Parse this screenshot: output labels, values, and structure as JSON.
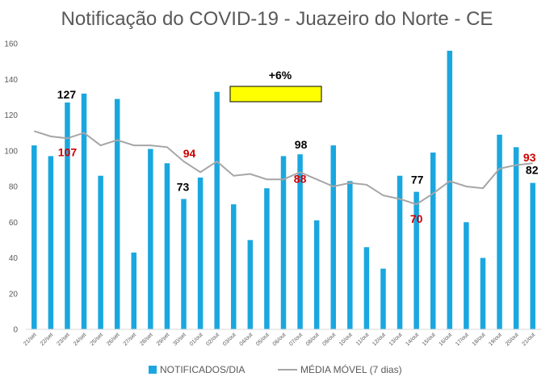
{
  "chart_data": {
    "type": "bar",
    "title": "Notificação do COVID-19 - Juazeiro do Norte - CE",
    "categories": [
      "21/set",
      "22/set",
      "23/set",
      "24/set",
      "25/set",
      "26/set",
      "27/set",
      "28/set",
      "29/set",
      "30/set",
      "01/out",
      "02/out",
      "03/out",
      "04/out",
      "05/out",
      "06/out",
      "07/out",
      "08/out",
      "09/out",
      "10/out",
      "11/out",
      "12/out",
      "13/out",
      "14/out",
      "15/out",
      "16/out",
      "17/out",
      "18/out",
      "19/out",
      "20/out",
      "21/out"
    ],
    "series": [
      {
        "name": "NOTIFICADOS/DIA",
        "type": "bar",
        "color": "#1AA7DF",
        "values": [
          103,
          97,
          127,
          132,
          86,
          129,
          43,
          101,
          93,
          73,
          85,
          133,
          70,
          50,
          79,
          97,
          98,
          61,
          103,
          83,
          46,
          34,
          86,
          77,
          99,
          156,
          60,
          40,
          109,
          102,
          82
        ]
      },
      {
        "name": "MÉDIA MÓVEL (7 dias)",
        "type": "line",
        "color": "#A6A6A6",
        "values": [
          111,
          108,
          107,
          110,
          103,
          106,
          103,
          103,
          102,
          94,
          88,
          94,
          86,
          87,
          84,
          84,
          88,
          84,
          80,
          82,
          81,
          75,
          73,
          70,
          76,
          83,
          80,
          79,
          90,
          92,
          93
        ]
      }
    ],
    "ylim": [
      0,
      160
    ],
    "yticks": [
      0,
      20,
      40,
      60,
      80,
      100,
      120,
      140,
      160
    ],
    "grid": false,
    "legend": "bottom",
    "annotations": {
      "bar_labels": [
        {
          "index": 2,
          "text": "127"
        },
        {
          "index": 16,
          "text": "98"
        },
        {
          "index": 9,
          "text": "73"
        },
        {
          "index": 23,
          "text": "77"
        },
        {
          "index": 30,
          "text": "82"
        }
      ],
      "line_labels": [
        {
          "index": 2,
          "text": "107"
        },
        {
          "index": 9,
          "text": "94"
        },
        {
          "index": 16,
          "text": "88"
        },
        {
          "index": 23,
          "text": "70"
        },
        {
          "index": 30,
          "text": "93"
        }
      ],
      "bar_label_color": "#000000",
      "line_label_color": "#CC0000",
      "callout": {
        "text": "+6%",
        "box_color": "#FFFF00"
      }
    }
  }
}
